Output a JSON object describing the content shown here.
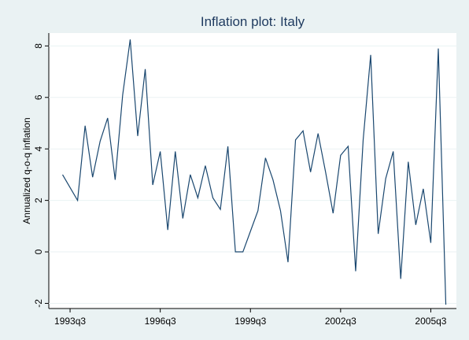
{
  "chart_data": {
    "type": "line",
    "title": "Inflation plot: Italy",
    "y_label": "Annualized q-o-q inflation",
    "categories": [
      null,
      "1993q3",
      null,
      null,
      null,
      null,
      null,
      null,
      null,
      null,
      null,
      null,
      null,
      "1996q3",
      null,
      null,
      null,
      null,
      null,
      null,
      null,
      null,
      null,
      null,
      null,
      "1999q3",
      null,
      null,
      null,
      null,
      null,
      null,
      null,
      null,
      null,
      null,
      null,
      "2002q3",
      null,
      null,
      null,
      null,
      null,
      null,
      null,
      null,
      null,
      null,
      null,
      "2005q3",
      null,
      null
    ],
    "series": [
      {
        "color": "#1a476f",
        "values": [
          3.0,
          2.5,
          2.0,
          4.9,
          2.9,
          4.3,
          5.2,
          2.8,
          6.1,
          8.25,
          4.5,
          7.1,
          2.6,
          3.9,
          0.85,
          3.9,
          1.3,
          3.0,
          2.1,
          3.35,
          2.1,
          1.65,
          4.1,
          0.0,
          0.0,
          0.8,
          1.6,
          3.65,
          2.8,
          1.6,
          -0.4,
          4.35,
          4.7,
          3.1,
          4.6,
          3.1,
          1.5,
          3.75,
          4.1,
          -0.75,
          4.35,
          7.65,
          0.7,
          2.85,
          3.9,
          -1.05,
          3.5,
          1.05,
          2.45,
          0.35,
          7.9,
          -2.05
        ]
      }
    ],
    "ylim": [
      -2.2,
      8.5
    ],
    "yticks": [
      -2,
      0,
      2,
      4,
      6,
      8
    ],
    "grid": true
  }
}
